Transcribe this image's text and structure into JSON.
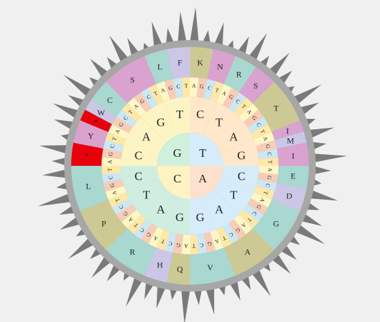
{
  "colors": {
    "background": "#f0f0f0",
    "ring_gray": "#a7a7a7",
    "spike": "#7a7a7a",
    "nuc": {
      "C": "#cde7f3",
      "T": "#fde8a8",
      "A": "#fdf7c6",
      "G": "#f7cdb7"
    },
    "inner_quadrants": [
      "#ffe7c9",
      "#d7ecfa",
      "#cfeee0",
      "#fdf4c4"
    ],
    "center": [
      "#d7ecfa",
      "#fde1cc",
      "#fff3c4",
      "#cff0dd"
    ],
    "amino": {
      "teal": "#a8d8d0",
      "pink": "#d9a2cf",
      "olive": "#cdc994",
      "lavender": "#ccc7e6",
      "red": "#e8000c"
    }
  },
  "center_letters": [
    "T",
    "A",
    "C",
    "G"
  ],
  "second_ring_letters": [
    "C",
    "T",
    "A",
    "G",
    "C",
    "T",
    "A",
    "G",
    "G",
    "A",
    "T",
    "C",
    "C",
    "A",
    "G",
    "T"
  ],
  "third_ring_letters": [
    "A",
    "G",
    "C",
    "T",
    "A",
    "G",
    "C",
    "T",
    "A",
    "G",
    "C",
    "T",
    "A",
    "G",
    "C",
    "T",
    "A",
    "G",
    "C",
    "T",
    "A",
    "G",
    "C",
    "T",
    "A",
    "G",
    "C",
    "T",
    "A",
    "G",
    "C",
    "T",
    "A",
    "G",
    "C",
    "T",
    "A",
    "G",
    "C",
    "T",
    "A",
    "G",
    "C",
    "T",
    "A",
    "G",
    "C",
    "T",
    "A",
    "G",
    "C",
    "T",
    "A",
    "G",
    "C",
    "T",
    "A",
    "G",
    "C",
    "T",
    "A",
    "G",
    "C",
    "T"
  ],
  "amino_acids": [
    {
      "label": "K",
      "color": "olive",
      "span": 2
    },
    {
      "label": "N",
      "color": "pink",
      "span": 2
    },
    {
      "label": "R",
      "color": "teal",
      "span": 2
    },
    {
      "label": "S",
      "color": "pink",
      "span": 2
    },
    {
      "label": "T",
      "color": "olive",
      "span": 4
    },
    {
      "label": "I",
      "color": "pink",
      "span": 1
    },
    {
      "label": "M",
      "color": "lavender",
      "span": 1
    },
    {
      "label": "I",
      "color": "pink",
      "span": 2
    },
    {
      "label": "E",
      "color": "teal",
      "span": 2
    },
    {
      "label": "D",
      "color": "lavender",
      "span": 2
    },
    {
      "label": "G",
      "color": "teal",
      "span": 4
    },
    {
      "label": "A",
      "color": "olive",
      "span": 4
    },
    {
      "label": "V",
      "color": "teal",
      "span": 4
    },
    {
      "label": "Q",
      "color": "olive",
      "span": 2
    },
    {
      "label": "H",
      "color": "lavender",
      "span": 2
    },
    {
      "label": "R",
      "color": "teal",
      "span": 4
    },
    {
      "label": "P",
      "color": "olive",
      "span": 4
    },
    {
      "label": "L",
      "color": "teal",
      "span": 4
    },
    {
      "label": "*",
      "color": "red",
      "span": 2
    },
    {
      "label": "Y",
      "color": "pink",
      "span": 2
    },
    {
      "label": "*",
      "color": "red",
      "span": 1
    },
    {
      "label": "W",
      "color": "lavender",
      "span": 1
    },
    {
      "label": "C",
      "color": "teal",
      "span": 2
    },
    {
      "label": "S",
      "color": "pink",
      "span": 4
    },
    {
      "label": "L",
      "color": "teal",
      "span": 2
    },
    {
      "label": "F",
      "color": "lavender",
      "span": 2
    }
  ]
}
